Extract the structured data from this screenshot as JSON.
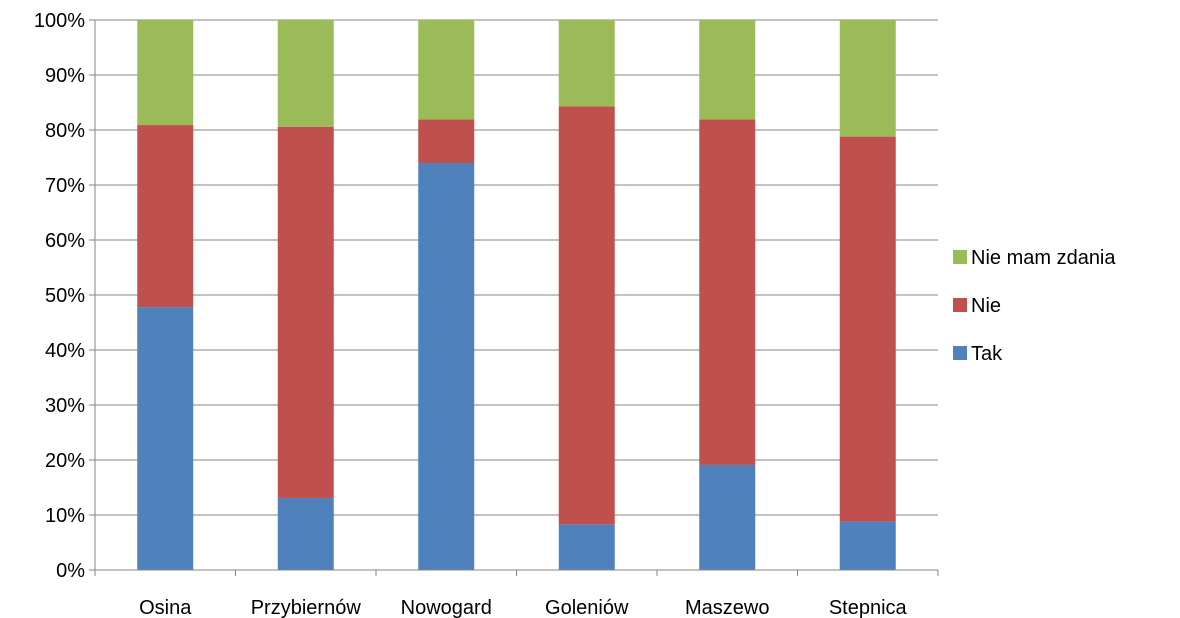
{
  "chart_data": {
    "type": "bar",
    "stacked": true,
    "percent": true,
    "categories": [
      "Osina",
      "Przybiernów",
      "Nowogard",
      "Goleniów",
      "Maszewo",
      "Stepnica"
    ],
    "series": [
      {
        "name": "Tak",
        "color": "#4F81BD",
        "values": [
          47.8,
          13.1,
          74.0,
          8.3,
          19.1,
          8.8
        ]
      },
      {
        "name": "Nie",
        "color": "#C0504D",
        "values": [
          33.1,
          67.5,
          7.9,
          76.0,
          62.8,
          70.0
        ]
      },
      {
        "name": "Nie mam zdania",
        "color": "#9BBB59",
        "values": [
          19.1,
          19.4,
          18.1,
          15.7,
          18.1,
          21.2
        ]
      }
    ],
    "ylim": [
      0,
      100
    ],
    "yticks": [
      "0%",
      "10%",
      "20%",
      "30%",
      "40%",
      "50%",
      "60%",
      "70%",
      "80%",
      "90%",
      "100%"
    ],
    "grid": true,
    "legend_position": "right",
    "legend_order": [
      "Nie mam zdania",
      "Nie",
      "Tak"
    ]
  }
}
